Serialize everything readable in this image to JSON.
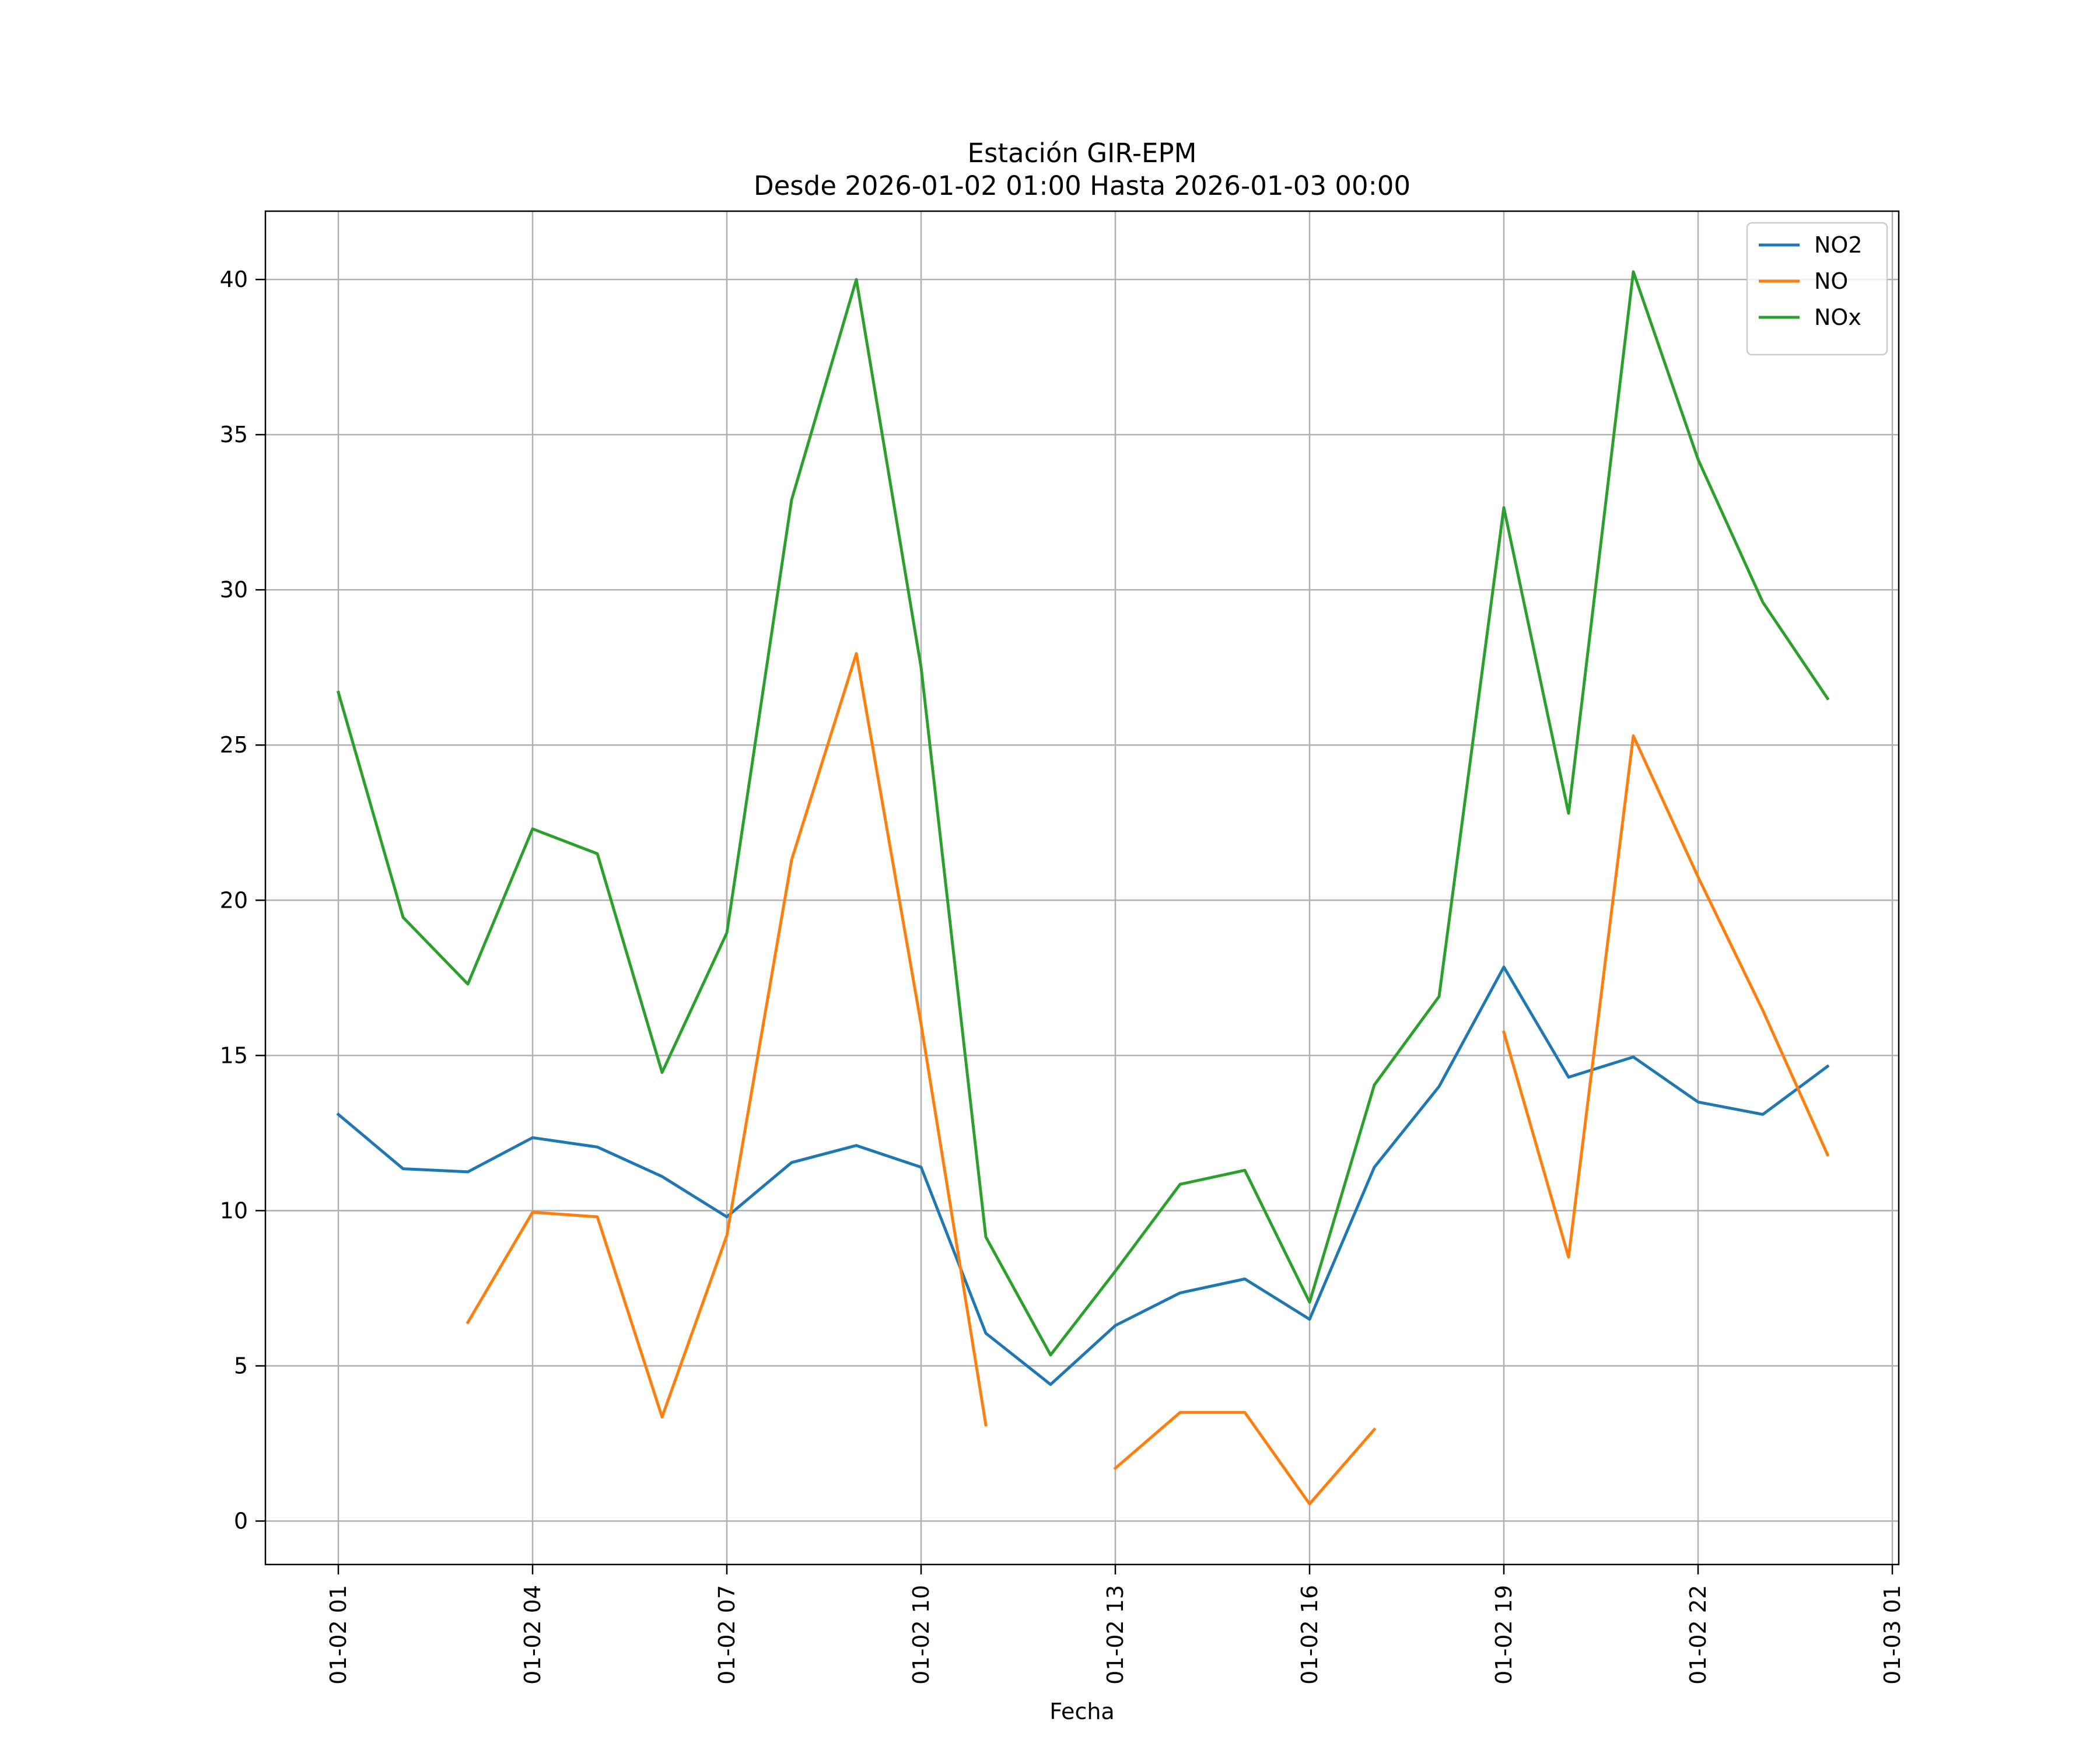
{
  "chart_data": {
    "type": "line",
    "title": "Estación GIR-EPM",
    "subtitle": "Desde 2026-01-02 01:00 Hasta 2026-01-03 00:00",
    "xlabel": "Fecha",
    "ylabel": "",
    "x": [
      "01-02 01",
      "01-02 02",
      "01-02 03",
      "01-02 04",
      "01-02 05",
      "01-02 06",
      "01-02 07",
      "01-02 08",
      "01-02 09",
      "01-02 10",
      "01-02 11",
      "01-02 12",
      "01-02 13",
      "01-02 14",
      "01-02 15",
      "01-02 16",
      "01-02 17",
      "01-02 18",
      "01-02 19",
      "01-02 20",
      "01-02 21",
      "01-02 22",
      "01-02 23",
      "01-03 00"
    ],
    "x_ticks": [
      "01-02 01",
      "01-02 04",
      "01-02 07",
      "01-02 10",
      "01-02 13",
      "01-02 16",
      "01-02 19",
      "01-02 22",
      "01-03 01"
    ],
    "ylim": [
      -1.4,
      42.2
    ],
    "y_ticks": [
      0,
      5,
      10,
      15,
      20,
      25,
      30,
      35,
      40
    ],
    "grid": true,
    "legend_position": "top-right",
    "series": [
      {
        "name": "NO2",
        "color": "#1f77b4",
        "values": [
          13.1,
          11.35,
          11.25,
          12.35,
          12.05,
          11.1,
          9.8,
          11.55,
          12.1,
          11.4,
          6.05,
          4.4,
          6.3,
          7.35,
          7.8,
          6.5,
          11.4,
          14.0,
          17.85,
          14.3,
          14.95,
          13.5,
          13.1,
          14.65
        ]
      },
      {
        "name": "NO",
        "color": "#ff7f0e",
        "values": [
          null,
          null,
          6.4,
          9.95,
          9.8,
          3.35,
          9.2,
          21.3,
          27.95,
          16.0,
          3.1,
          null,
          1.7,
          3.5,
          3.5,
          0.55,
          2.95,
          null,
          15.75,
          8.5,
          25.3,
          20.75,
          16.45,
          11.8
        ]
      },
      {
        "name": "NOx",
        "color": "#2ca02c",
        "values": [
          26.7,
          19.45,
          17.3,
          22.3,
          21.5,
          14.45,
          18.95,
          32.9,
          40.0,
          27.5,
          9.15,
          5.35,
          8.05,
          10.85,
          11.3,
          7.05,
          14.05,
          16.9,
          32.65,
          22.8,
          40.25,
          34.2,
          29.6,
          26.5
        ]
      }
    ]
  }
}
